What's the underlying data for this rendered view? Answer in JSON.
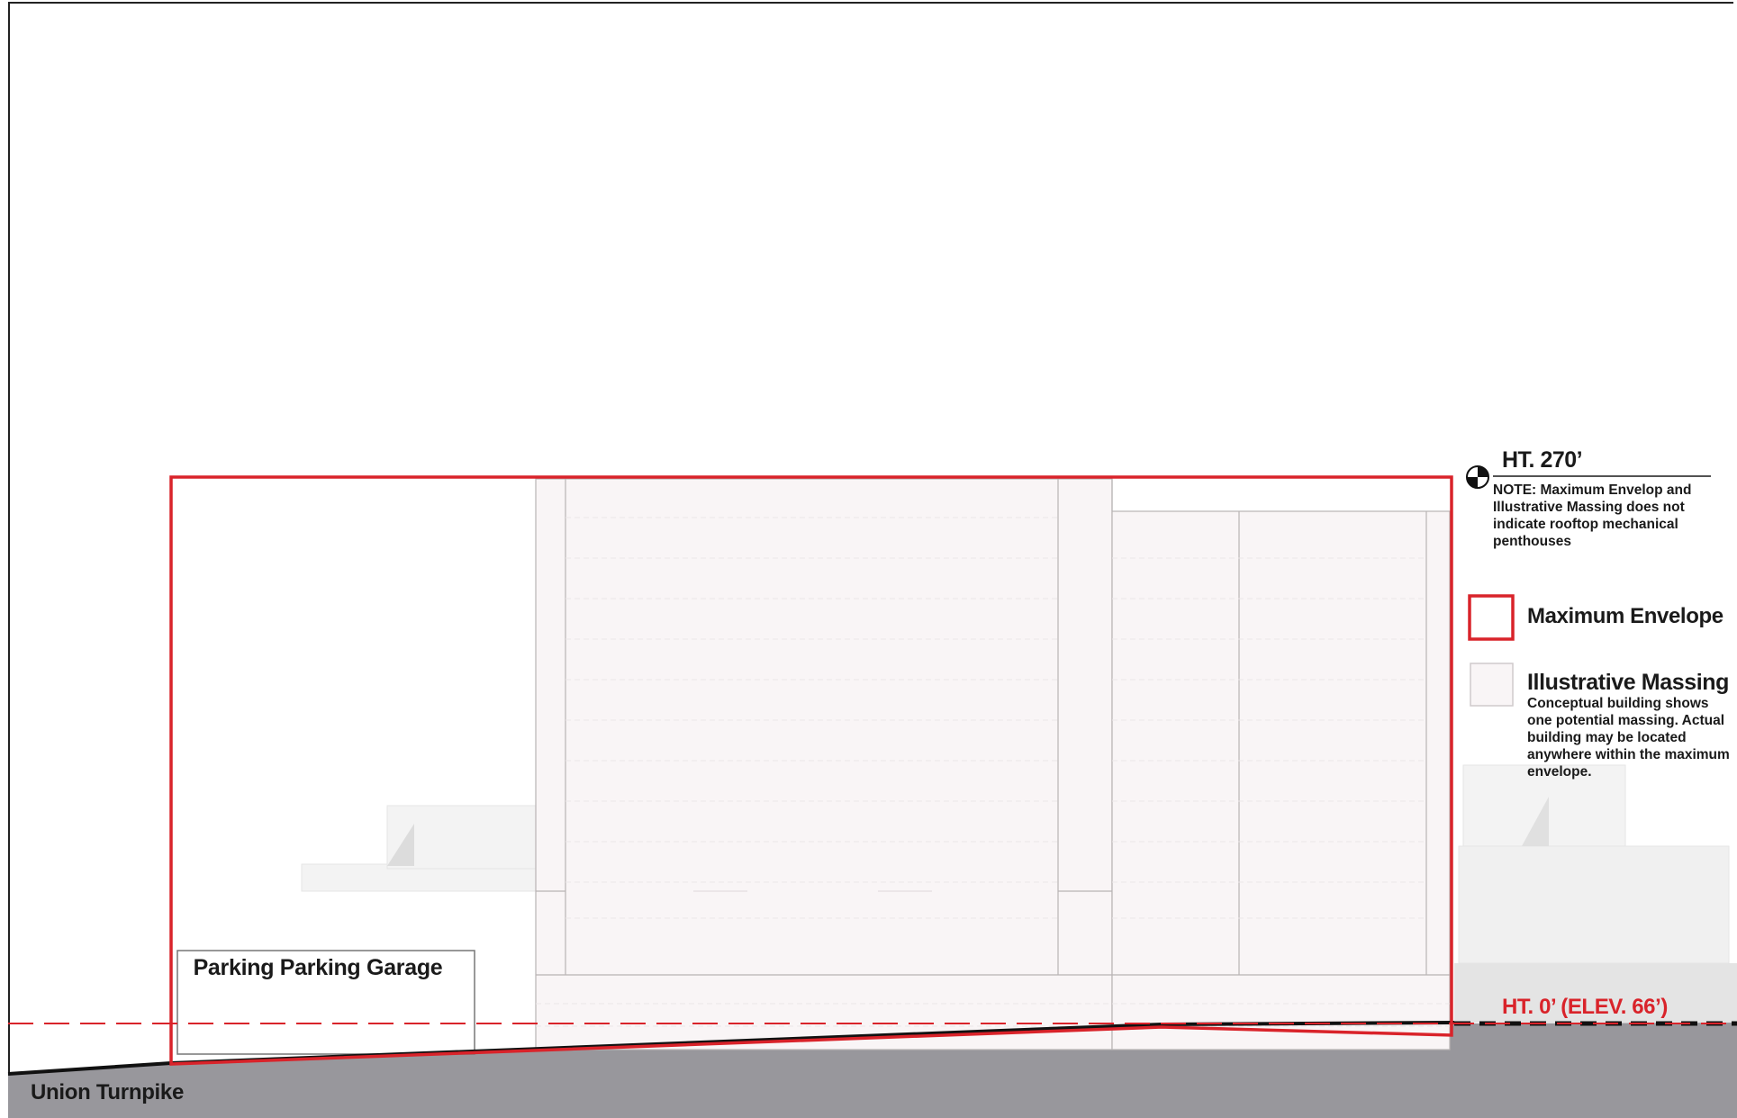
{
  "labels": {
    "height_top": "HT. 270’",
    "note_prefix": "NOTE: Maximum Envelop and Illustrative Massing ",
    "note_bold": "does not",
    "note_suffix": " indicate rooftop mechanical penthouses",
    "height_base": "HT. 0’ (ELEV. 66’)",
    "garage": "Parking Parking Garage",
    "street": "Union Turnpike"
  },
  "legend": [
    {
      "title": "Maximum Envelope",
      "swatch": "outline-red"
    },
    {
      "title": "Illustrative Massing",
      "swatch": "light-fill",
      "description": "Conceptual building shows one potential massing. Actual building may be located anywhere within the maximum envelope."
    }
  ],
  "colors": {
    "envelope": "#d9232a",
    "massing_fill": "#f9f5f6",
    "ground": "#98979c",
    "datum": "#d9232a"
  },
  "icons": {
    "datum_marker": "datum-marker-icon"
  }
}
